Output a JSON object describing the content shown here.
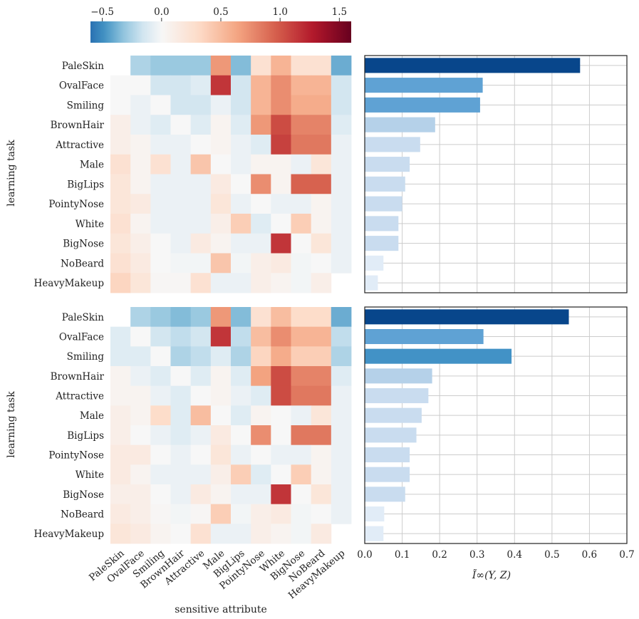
{
  "labels": {
    "task_label": "learning task",
    "sensitive_label": "sensitive attribute",
    "info_label": "Ĩ∞(Y, Z)"
  },
  "colorbar": {
    "vmin": -0.6,
    "vmax": 1.6,
    "ticks": [
      -0.5,
      0.0,
      0.5,
      1.0,
      1.5
    ],
    "tick_labels": [
      "−0.5",
      "0.0",
      "0.5",
      "1.0",
      "1.5"
    ],
    "colormap": "RdBu_r"
  },
  "bar_axis": {
    "xlim": [
      0,
      0.7
    ],
    "ticks": [
      0.0,
      0.1,
      0.2,
      0.3,
      0.4,
      0.5,
      0.6,
      0.7
    ],
    "tick_labels": [
      "0.0",
      "0.1",
      "0.2",
      "0.3",
      "0.4",
      "0.5",
      "0.6",
      "0.7"
    ]
  },
  "chart_data": [
    {
      "type": "heatmap",
      "title": "",
      "xlabel": "sensitive attribute",
      "ylabel": "learning task",
      "rows": [
        "PaleSkin",
        "OvalFace",
        "Smiling",
        "BrownHair",
        "Attractive",
        "Male",
        "BigLips",
        "PointyNose",
        "White",
        "BigNose",
        "NoBeard",
        "HeavyMakeup"
      ],
      "columns": [
        "PaleSkin",
        "OvalFace",
        "Smiling",
        "BrownHair",
        "Attractive",
        "Male",
        "BigLips",
        "PointyNose",
        "White",
        "BigNose",
        "NoBeard",
        "HeavyMakeup"
      ],
      "values": [
        [
          null,
          -0.25,
          -0.3,
          -0.3,
          -0.3,
          0.7,
          -0.35,
          0.25,
          0.55,
          0.25,
          0.25,
          -0.4
        ],
        [
          0.0,
          0.0,
          -0.15,
          -0.15,
          -0.1,
          1.15,
          -0.15,
          0.55,
          0.75,
          0.55,
          0.55,
          -0.15
        ],
        [
          0.0,
          -0.05,
          0.0,
          -0.15,
          -0.15,
          -0.05,
          -0.15,
          0.55,
          0.75,
          0.6,
          0.6,
          -0.15
        ],
        [
          0.1,
          -0.05,
          -0.1,
          0.0,
          -0.1,
          0.05,
          -0.1,
          0.7,
          1.05,
          0.8,
          0.8,
          -0.1
        ],
        [
          0.1,
          0.05,
          -0.05,
          -0.05,
          0.0,
          0.05,
          -0.05,
          -0.1,
          1.1,
          0.85,
          0.85,
          -0.05
        ],
        [
          0.25,
          0.05,
          0.25,
          -0.05,
          0.45,
          0.0,
          -0.05,
          0.05,
          0.05,
          -0.05,
          0.2,
          -0.05
        ],
        [
          0.2,
          0.05,
          -0.05,
          -0.05,
          -0.05,
          0.15,
          0.0,
          0.75,
          0.05,
          0.95,
          0.95,
          -0.05
        ],
        [
          0.2,
          0.15,
          -0.05,
          -0.05,
          -0.05,
          0.2,
          -0.05,
          0.0,
          -0.05,
          -0.05,
          0.05,
          -0.05
        ],
        [
          0.25,
          0.05,
          -0.05,
          -0.05,
          -0.05,
          0.1,
          0.4,
          -0.1,
          0.0,
          0.4,
          0.05,
          -0.05
        ],
        [
          0.2,
          0.1,
          0.0,
          -0.05,
          0.15,
          0.05,
          -0.05,
          -0.05,
          1.15,
          0.0,
          0.2,
          -0.05
        ],
        [
          0.25,
          0.15,
          0.0,
          -0.02,
          -0.02,
          0.45,
          -0.02,
          0.1,
          0.15,
          -0.02,
          0.0,
          -0.05
        ],
        [
          0.35,
          0.2,
          0.02,
          0.02,
          0.25,
          -0.05,
          -0.05,
          0.1,
          0.05,
          -0.02,
          0.1,
          null
        ]
      ]
    },
    {
      "type": "bar",
      "title": "",
      "orientation": "horizontal",
      "xlabel": "Ĩ∞(Y, Z)",
      "ylabel": "",
      "categories": [
        "PaleSkin",
        "OvalFace",
        "Smiling",
        "BrownHair",
        "Attractive",
        "Male",
        "BigLips",
        "PointyNose",
        "White",
        "BigNose",
        "NoBeard",
        "HeavyMakeup"
      ],
      "values": [
        0.575,
        0.315,
        0.308,
        0.188,
        0.148,
        0.12,
        0.108,
        0.1,
        0.09,
        0.09,
        0.05,
        0.035
      ],
      "xlim": [
        0,
        0.7
      ]
    },
    {
      "type": "heatmap",
      "title": "",
      "xlabel": "sensitive attribute",
      "ylabel": "learning task",
      "rows": [
        "PaleSkin",
        "OvalFace",
        "Smiling",
        "BrownHair",
        "Attractive",
        "Male",
        "BigLips",
        "PointyNose",
        "White",
        "BigNose",
        "NoBeard",
        "HeavyMakeup"
      ],
      "columns": [
        "PaleSkin",
        "OvalFace",
        "Smiling",
        "BrownHair",
        "Attractive",
        "Male",
        "BigLips",
        "PointyNose",
        "White",
        "BigNose",
        "NoBeard",
        "HeavyMakeup"
      ],
      "values": [
        [
          null,
          -0.25,
          -0.3,
          -0.35,
          -0.3,
          0.7,
          -0.35,
          0.25,
          0.5,
          0.3,
          0.3,
          -0.4
        ],
        [
          -0.1,
          0.0,
          -0.15,
          -0.2,
          -0.15,
          1.15,
          -0.2,
          0.5,
          0.75,
          0.55,
          0.55,
          -0.2
        ],
        [
          -0.1,
          -0.1,
          0.0,
          -0.25,
          -0.2,
          -0.1,
          -0.25,
          0.35,
          0.6,
          0.4,
          0.4,
          -0.25
        ],
        [
          0.05,
          -0.05,
          -0.1,
          0.0,
          -0.1,
          0.05,
          -0.1,
          0.65,
          1.05,
          0.8,
          0.8,
          -0.1
        ],
        [
          0.05,
          0.05,
          -0.05,
          -0.1,
          0.0,
          0.05,
          -0.05,
          -0.1,
          1.05,
          0.85,
          0.85,
          -0.05
        ],
        [
          0.1,
          0.05,
          0.3,
          -0.1,
          0.5,
          0.0,
          -0.1,
          0.05,
          0.0,
          -0.05,
          0.2,
          -0.05
        ],
        [
          0.1,
          0.0,
          -0.05,
          -0.1,
          -0.05,
          0.15,
          0.0,
          0.75,
          0.0,
          0.85,
          0.85,
          -0.05
        ],
        [
          0.15,
          0.15,
          0.0,
          -0.05,
          0.0,
          0.2,
          -0.05,
          0.0,
          -0.05,
          -0.05,
          0.05,
          -0.05
        ],
        [
          0.15,
          0.05,
          -0.05,
          -0.05,
          -0.05,
          0.1,
          0.4,
          -0.1,
          0.0,
          0.4,
          0.05,
          -0.05
        ],
        [
          0.1,
          0.1,
          0.0,
          -0.05,
          0.15,
          0.05,
          -0.05,
          -0.05,
          1.15,
          0.0,
          0.2,
          -0.05
        ],
        [
          0.15,
          0.1,
          0.02,
          -0.02,
          0.02,
          0.4,
          -0.02,
          0.1,
          0.15,
          -0.02,
          0.0,
          -0.05
        ],
        [
          0.2,
          0.15,
          0.05,
          0.0,
          0.25,
          -0.05,
          -0.05,
          0.1,
          0.05,
          -0.02,
          0.15,
          null
        ]
      ]
    },
    {
      "type": "bar",
      "title": "",
      "orientation": "horizontal",
      "xlabel": "Ĩ∞(Y, Z)",
      "ylabel": "",
      "categories": [
        "PaleSkin",
        "OvalFace",
        "Smiling",
        "BrownHair",
        "Attractive",
        "Male",
        "BigLips",
        "PointyNose",
        "White",
        "BigNose",
        "NoBeard",
        "HeavyMakeup"
      ],
      "values": [
        0.545,
        0.317,
        0.392,
        0.18,
        0.17,
        0.152,
        0.138,
        0.12,
        0.12,
        0.108,
        0.052,
        0.05
      ],
      "xlim": [
        0,
        0.7
      ]
    }
  ]
}
